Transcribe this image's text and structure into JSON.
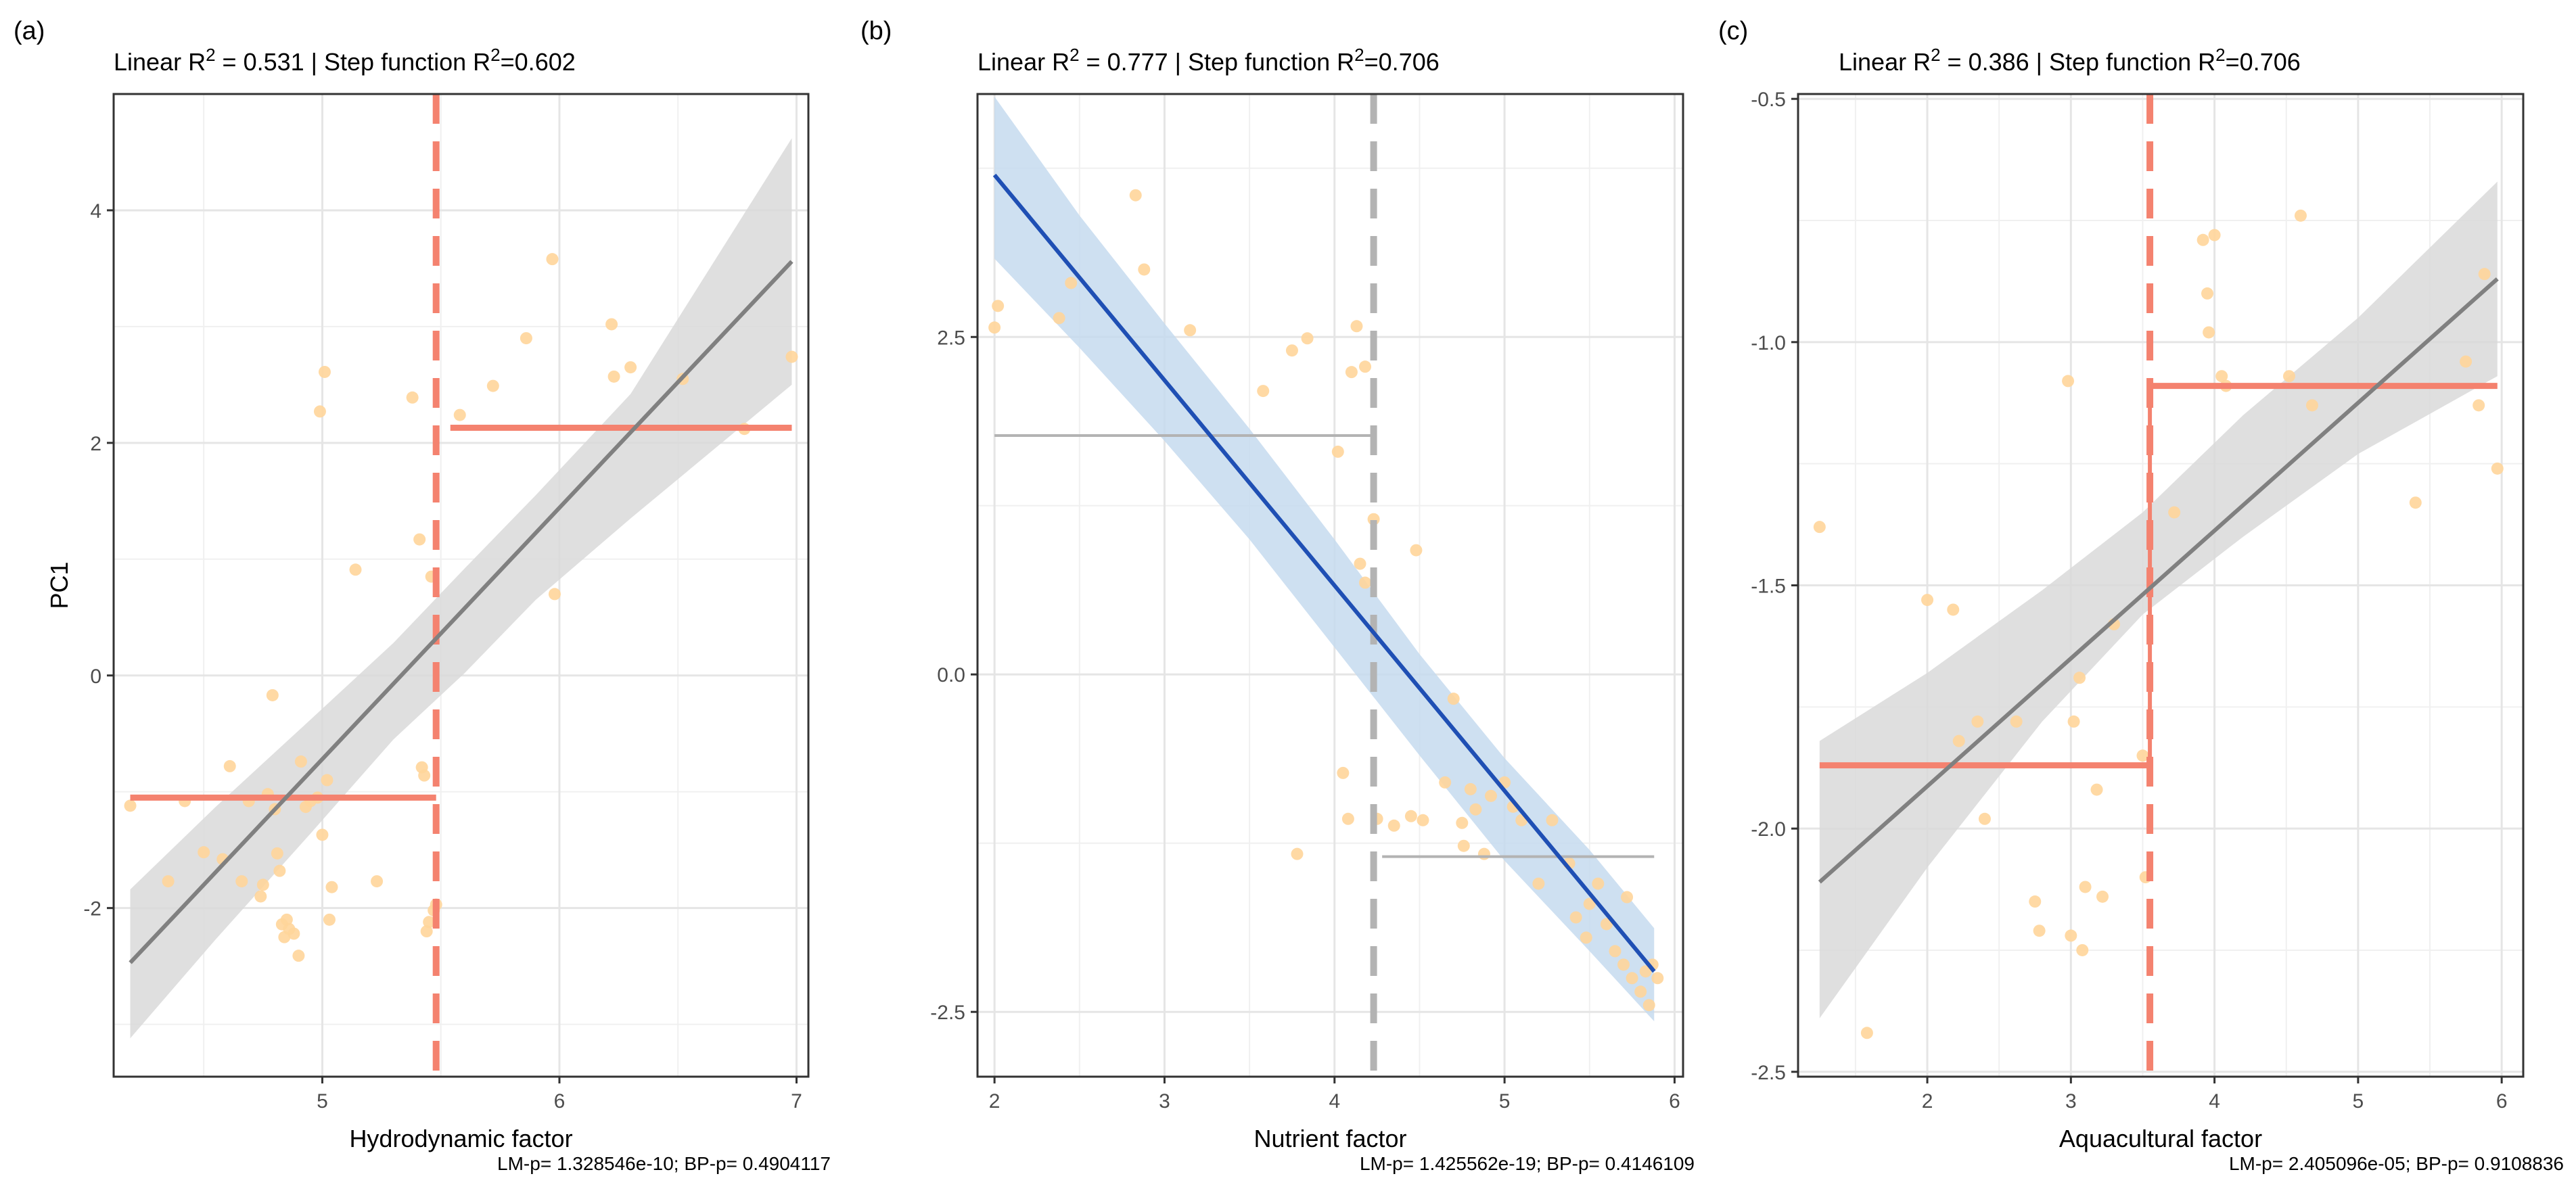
{
  "chart_data": [
    {
      "type": "scatter",
      "panel_label": "(a)",
      "title_linear": "Linear R",
      "title_linear_value": " = 0.531 |  Step function R",
      "title_step_value": "=0.602",
      "r2_linear": 0.531,
      "r2_step": 0.602,
      "xlabel": "Hydrodynamic factor",
      "ylabel": "PC1",
      "xlim": [
        4.12,
        7.05
      ],
      "ylim": [
        -3.45,
        5.0
      ],
      "xticks": [
        5,
        6,
        7
      ],
      "yticks": [
        -2,
        0,
        2,
        4
      ],
      "grid": true,
      "footnote": "LM-p= 1.328546e-10; BP-p= 0.4904117",
      "colors": {
        "points": "#FFD59A",
        "regression": "#808080",
        "band": "#D9D9D9",
        "step": "#F4826F",
        "threshold": "#F4826F"
      },
      "points": [
        [
          4.19,
          -1.12
        ],
        [
          4.35,
          -1.77
        ],
        [
          4.42,
          -1.08
        ],
        [
          4.5,
          -1.52
        ],
        [
          4.58,
          -1.58
        ],
        [
          4.61,
          -0.78
        ],
        [
          4.66,
          -1.77
        ],
        [
          4.69,
          -1.08
        ],
        [
          4.74,
          -1.9
        ],
        [
          4.75,
          -1.8
        ],
        [
          4.77,
          -1.02
        ],
        [
          4.79,
          -0.17
        ],
        [
          4.8,
          -1.15
        ],
        [
          4.81,
          -1.53
        ],
        [
          4.82,
          -1.68
        ],
        [
          4.83,
          -2.14
        ],
        [
          4.84,
          -2.25
        ],
        [
          4.85,
          -2.1
        ],
        [
          4.86,
          -2.18
        ],
        [
          4.88,
          -2.22
        ],
        [
          4.9,
          -2.41
        ],
        [
          4.91,
          -0.74
        ],
        [
          4.93,
          -1.13
        ],
        [
          4.95,
          -1.08
        ],
        [
          4.98,
          -1.05
        ],
        [
          5.0,
          -1.37
        ],
        [
          4.99,
          2.27
        ],
        [
          5.01,
          2.61
        ],
        [
          5.02,
          -0.9
        ],
        [
          5.03,
          -2.1
        ],
        [
          5.04,
          -1.82
        ],
        [
          5.14,
          0.91
        ],
        [
          5.23,
          -1.77
        ],
        [
          5.38,
          2.39
        ],
        [
          5.41,
          1.17
        ],
        [
          5.42,
          -0.79
        ],
        [
          5.43,
          -0.86
        ],
        [
          5.44,
          -2.2
        ],
        [
          5.45,
          -2.12
        ],
        [
          5.46,
          0.85
        ],
        [
          5.47,
          -2.02
        ],
        [
          5.48,
          -1.97
        ],
        [
          5.58,
          2.24
        ],
        [
          5.72,
          2.49
        ],
        [
          5.86,
          2.9
        ],
        [
          5.97,
          3.58
        ],
        [
          5.98,
          0.7
        ],
        [
          6.22,
          3.02
        ],
        [
          6.23,
          2.57
        ],
        [
          6.3,
          2.65
        ],
        [
          6.52,
          2.55
        ],
        [
          6.78,
          2.12
        ],
        [
          6.98,
          2.74
        ]
      ],
      "regression": {
        "x": [
          4.19,
          6.98
        ],
        "y": [
          -2.47,
          3.56
        ]
      },
      "ci_upper": [
        [
          4.19,
          -1.84
        ],
        [
          4.55,
          -1.13
        ],
        [
          4.95,
          -0.38
        ],
        [
          5.3,
          0.28
        ],
        [
          5.6,
          0.92
        ],
        [
          5.9,
          1.55
        ],
        [
          6.3,
          2.42
        ],
        [
          6.98,
          4.62
        ]
      ],
      "ci_lower": [
        [
          4.19,
          -3.12
        ],
        [
          4.55,
          -2.27
        ],
        [
          4.95,
          -1.36
        ],
        [
          5.3,
          -0.55
        ],
        [
          5.6,
          0.02
        ],
        [
          5.9,
          0.65
        ],
        [
          6.3,
          1.35
        ],
        [
          6.98,
          2.5
        ]
      ],
      "step": [
        {
          "x0": 4.19,
          "x1": 5.48,
          "y": -1.05
        },
        {
          "x0": 5.54,
          "x1": 6.98,
          "y": 2.13
        }
      ],
      "threshold": 5.48,
      "threshold_color": "#F4826F"
    },
    {
      "type": "scatter",
      "panel_label": "(b)",
      "title_linear": "Linear R",
      "title_linear_value": " = 0.777 |  Step function R",
      "title_step_value": "=0.706",
      "r2_linear": 0.777,
      "r2_step": 0.706,
      "xlabel": "Nutrient factor",
      "ylabel": "",
      "xlim": [
        1.9,
        6.05
      ],
      "ylim": [
        -2.98,
        4.3
      ],
      "xticks": [
        2,
        3,
        4,
        5,
        6
      ],
      "yticks": [
        -2.5,
        0.0,
        2.5
      ],
      "ytick_labels": [
        "-2.5",
        "0.0",
        "2.5"
      ],
      "grid": true,
      "footnote": "LM-p= 1.425562e-19; BP-p= 0.4146109",
      "colors": {
        "points": "#FFD59A",
        "regression": "#1F4FB4",
        "band": "#C6DBEF",
        "step": "#B3B3B3",
        "threshold": "#B3B3B3"
      },
      "points": [
        [
          2.0,
          2.57
        ],
        [
          2.02,
          2.73
        ],
        [
          2.38,
          2.64
        ],
        [
          2.45,
          2.9
        ],
        [
          2.83,
          3.55
        ],
        [
          2.88,
          3.0
        ],
        [
          3.15,
          2.55
        ],
        [
          3.58,
          2.1
        ],
        [
          3.75,
          2.4
        ],
        [
          3.84,
          2.49
        ],
        [
          4.02,
          1.65
        ],
        [
          4.1,
          2.24
        ],
        [
          4.13,
          2.58
        ],
        [
          4.18,
          2.28
        ],
        [
          4.23,
          1.15
        ],
        [
          4.15,
          0.82
        ],
        [
          4.18,
          0.68
        ],
        [
          3.78,
          -1.33
        ],
        [
          4.05,
          -0.73
        ],
        [
          4.08,
          -1.07
        ],
        [
          4.25,
          -1.07
        ],
        [
          4.35,
          -1.12
        ],
        [
          4.45,
          -1.05
        ],
        [
          4.48,
          0.92
        ],
        [
          4.52,
          -1.08
        ],
        [
          4.65,
          -0.8
        ],
        [
          4.7,
          -0.18
        ],
        [
          4.75,
          -1.1
        ],
        [
          4.76,
          -1.27
        ],
        [
          4.8,
          -0.85
        ],
        [
          4.83,
          -1.0
        ],
        [
          4.88,
          -1.33
        ],
        [
          4.92,
          -0.9
        ],
        [
          5.0,
          -0.8
        ],
        [
          5.05,
          -0.98
        ],
        [
          5.1,
          -1.08
        ],
        [
          5.2,
          -1.55
        ],
        [
          5.28,
          -1.08
        ],
        [
          5.38,
          -1.4
        ],
        [
          5.42,
          -1.8
        ],
        [
          5.48,
          -1.95
        ],
        [
          5.5,
          -1.7
        ],
        [
          5.55,
          -1.55
        ],
        [
          5.6,
          -1.85
        ],
        [
          5.65,
          -2.05
        ],
        [
          5.7,
          -2.15
        ],
        [
          5.72,
          -1.65
        ],
        [
          5.75,
          -2.25
        ],
        [
          5.8,
          -2.35
        ],
        [
          5.83,
          -2.2
        ],
        [
          5.85,
          -2.45
        ],
        [
          5.87,
          -2.15
        ],
        [
          5.9,
          -2.25
        ]
      ],
      "regression": {
        "x": [
          2.0,
          5.88
        ],
        "y": [
          3.7,
          -2.2
        ]
      },
      "ci_upper": [
        [
          2.0,
          4.28
        ],
        [
          2.5,
          3.4
        ],
        [
          3.0,
          2.6
        ],
        [
          3.5,
          1.82
        ],
        [
          4.0,
          1.0
        ],
        [
          4.5,
          0.15
        ],
        [
          5.0,
          -0.62
        ],
        [
          5.5,
          -1.3
        ],
        [
          5.88,
          -1.88
        ]
      ],
      "ci_lower": [
        [
          2.0,
          3.08
        ],
        [
          2.5,
          2.42
        ],
        [
          3.0,
          1.73
        ],
        [
          3.5,
          1.0
        ],
        [
          4.0,
          0.2
        ],
        [
          4.5,
          -0.6
        ],
        [
          5.0,
          -1.38
        ],
        [
          5.5,
          -2.05
        ],
        [
          5.88,
          -2.57
        ]
      ],
      "step": [
        {
          "x0": 2.0,
          "x1": 4.23,
          "y": 1.77
        },
        {
          "x0": 4.28,
          "x1": 5.88,
          "y": -1.35
        }
      ],
      "threshold": 4.23,
      "threshold_color": "#B3B3B3"
    },
    {
      "type": "scatter",
      "panel_label": "(c)",
      "title_linear": "Linear R",
      "title_linear_value": " = 0.386 |  Step function R",
      "title_step_value": "=0.706",
      "r2_linear": 0.386,
      "r2_step": 0.706,
      "xlabel": "Aquacultural factor",
      "ylabel": "",
      "xlim": [
        1.1,
        6.15
      ],
      "ylim": [
        -2.51,
        -0.49
      ],
      "xticks": [
        2,
        3,
        4,
        5,
        6
      ],
      "yticks": [
        -2.5,
        -2.0,
        -1.5,
        -1.0,
        -0.5
      ],
      "ytick_labels": [
        "-2.5",
        "-2.0",
        "-1.5",
        "-1.0",
        "-0.5"
      ],
      "grid": true,
      "footnote": "LM-p= 2.405096e-05; BP-p= 0.9108836",
      "colors": {
        "points": "#FFD59A",
        "regression": "#808080",
        "band": "#D9D9D9",
        "step": "#F4826F",
        "threshold": "#F4826F"
      },
      "points": [
        [
          1.25,
          -1.38
        ],
        [
          1.58,
          -2.42
        ],
        [
          2.0,
          -1.53
        ],
        [
          2.18,
          -1.55
        ],
        [
          2.22,
          -1.82
        ],
        [
          2.35,
          -1.78
        ],
        [
          2.4,
          -1.98
        ],
        [
          2.62,
          -1.78
        ],
        [
          2.75,
          -2.15
        ],
        [
          2.78,
          -2.21
        ],
        [
          2.98,
          -1.08
        ],
        [
          3.0,
          -2.22
        ],
        [
          3.02,
          -1.78
        ],
        [
          3.06,
          -1.69
        ],
        [
          3.08,
          -2.25
        ],
        [
          3.1,
          -2.12
        ],
        [
          3.18,
          -1.92
        ],
        [
          3.22,
          -2.14
        ],
        [
          3.3,
          -1.58
        ],
        [
          3.5,
          -1.85
        ],
        [
          3.52,
          -2.1
        ],
        [
          3.72,
          -1.35
        ],
        [
          3.92,
          -0.79
        ],
        [
          3.95,
          -0.9
        ],
        [
          3.96,
          -0.98
        ],
        [
          4.0,
          -0.78
        ],
        [
          4.05,
          -1.07
        ],
        [
          4.08,
          -1.09
        ],
        [
          4.52,
          -1.07
        ],
        [
          4.6,
          -0.74
        ],
        [
          4.68,
          -1.13
        ],
        [
          5.4,
          -1.33
        ],
        [
          5.75,
          -1.04
        ],
        [
          5.84,
          -1.13
        ],
        [
          5.88,
          -0.86
        ],
        [
          5.97,
          -1.26
        ]
      ],
      "regression": {
        "x": [
          1.25,
          5.97
        ],
        "y": [
          -2.11,
          -0.87
        ]
      },
      "ci_upper": [
        [
          1.25,
          -1.82
        ],
        [
          2.0,
          -1.68
        ],
        [
          2.8,
          -1.51
        ],
        [
          3.5,
          -1.35
        ],
        [
          4.2,
          -1.15
        ],
        [
          5.0,
          -0.95
        ],
        [
          5.97,
          -0.67
        ]
      ],
      "ci_lower": [
        [
          1.25,
          -2.39
        ],
        [
          2.0,
          -2.08
        ],
        [
          2.8,
          -1.78
        ],
        [
          3.5,
          -1.56
        ],
        [
          4.2,
          -1.4
        ],
        [
          5.0,
          -1.23
        ],
        [
          5.97,
          -1.07
        ]
      ],
      "step": [
        {
          "x0": 1.25,
          "x1": 3.55,
          "y": -1.87
        },
        {
          "x0": 3.55,
          "x1": 5.97,
          "y": -1.09
        }
      ],
      "step_connector": true,
      "threshold": 3.55,
      "threshold_color": "#F4826F"
    }
  ]
}
